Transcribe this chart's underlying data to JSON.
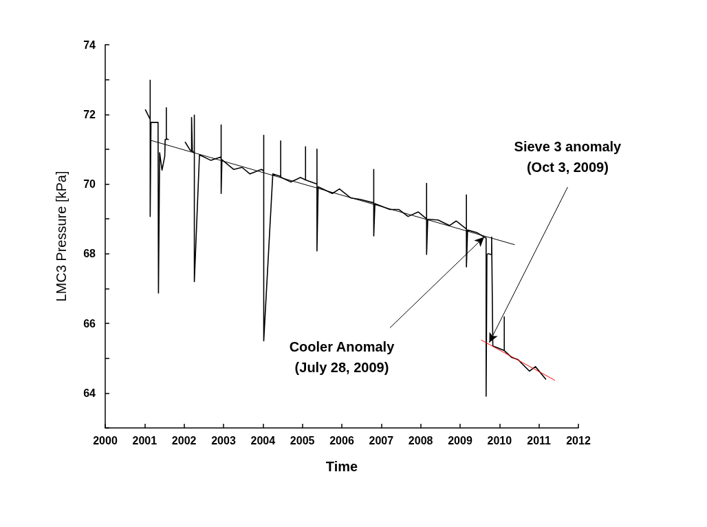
{
  "chart_data": {
    "type": "line",
    "xlabel": "Time",
    "ylabel": "LMC3 Pressure [kPa]",
    "xlim": [
      2000,
      2012
    ],
    "xticks": [
      2000,
      2001,
      2002,
      2003,
      2004,
      2005,
      2006,
      2007,
      2008,
      2009,
      2010,
      2011,
      2012
    ],
    "ylim": [
      63,
      74
    ],
    "yticks": [
      {
        "value": 63,
        "label": null
      },
      64,
      {
        "value": 65,
        "label": null
      },
      66,
      {
        "value": 67,
        "label": null
      },
      68,
      {
        "value": 69,
        "label": null
      },
      70,
      {
        "value": 71,
        "label": null
      },
      72,
      {
        "value": 73,
        "label": null
      },
      74
    ],
    "grid": false,
    "marker": "none",
    "line_style": "solid",
    "series": [
      {
        "color": "#000000",
        "x": [
          2001.02,
          2001.1,
          2001.14,
          2001.14,
          2001.14,
          2001.16,
          2001.34,
          2001.35,
          2001.35,
          2001.38,
          2001.44,
          2001.51,
          2001.52,
          2001.55,
          2001.55,
          2001.55,
          2001.6,
          2001.8,
          2002.03,
          2002.15,
          2002.19,
          2002.19,
          2002.21,
          2002.26,
          2002.26,
          2002.26,
          2002.39,
          2002.68,
          2002.94,
          2002.94,
          2002.94,
          2002.96,
          2003.26,
          2003.47,
          2003.67,
          2003.96,
          2004.02,
          2004.02,
          2004.02,
          2004.25,
          2004.45,
          2004.45,
          2004.45,
          2004.71,
          2004.95,
          2005.08,
          2005.08,
          2005.08,
          2005.15,
          2005.37,
          2005.37,
          2005.37,
          2005.4,
          2005.76,
          2005.94,
          2006.23,
          2006.46,
          2006.81,
          2006.81,
          2006.81,
          2006.84,
          2007.22,
          2007.45,
          2007.68,
          2007.94,
          2008.15,
          2008.15,
          2008.15,
          2008.18,
          2008.44,
          2008.73,
          2008.9,
          2009.16,
          2009.16,
          2009.16,
          2009.19,
          2009.42,
          2009.61,
          2009.66,
          2009.66,
          2009.68,
          2009.71,
          2009.78,
          2009.8,
          2009.8,
          2009.83,
          2009.95,
          2010.12,
          2010.12,
          2010.12,
          2010.3,
          2010.47,
          2010.76,
          2010.91,
          2011.17
        ],
        "values": [
          72.13,
          71.95,
          71.86,
          72.98,
          69.07,
          71.77,
          71.77,
          71.77,
          66.87,
          70.9,
          70.4,
          70.8,
          71.28,
          71.28,
          72.19,
          71.3,
          71.28,
          null,
          71.2,
          70.98,
          70.94,
          71.91,
          70.94,
          70.9,
          71.98,
          67.2,
          70.84,
          70.68,
          70.78,
          71.7,
          69.73,
          70.7,
          70.42,
          70.48,
          70.29,
          70.42,
          70.38,
          71.4,
          65.5,
          70.29,
          70.22,
          71.24,
          70.2,
          70.06,
          70.19,
          70.12,
          71.07,
          70.12,
          70.09,
          70.0,
          71.0,
          68.08,
          69.92,
          69.73,
          69.86,
          69.6,
          69.56,
          69.46,
          70.42,
          68.51,
          69.44,
          69.27,
          69.27,
          69.07,
          69.2,
          69.0,
          70.02,
          67.98,
          68.99,
          68.97,
          68.81,
          68.94,
          68.71,
          69.69,
          67.62,
          68.68,
          68.61,
          68.48,
          68.45,
          63.91,
          67.98,
          68.0,
          67.98,
          67.98,
          68.48,
          65.35,
          65.3,
          65.22,
          66.19,
          65.22,
          65.03,
          64.96,
          64.63,
          64.76,
          64.4
        ]
      },
      {
        "color": "#000000",
        "x": [
          2001.17,
          2010.38
        ],
        "values": [
          71.25,
          68.26
        ]
      },
      {
        "color": "#ff0000",
        "x": [
          2009.54,
          2011.4
        ],
        "values": [
          65.52,
          64.37
        ]
      }
    ],
    "annotations": [
      {
        "text": "Cooler Anomaly\n(July 28, 2009)",
        "x": 2009.61,
        "y": 68.48
      },
      {
        "text": "Sieve 3 anomaly\n(Oct 3, 2009)",
        "x": 2009.74,
        "y": 65.45
      }
    ]
  }
}
